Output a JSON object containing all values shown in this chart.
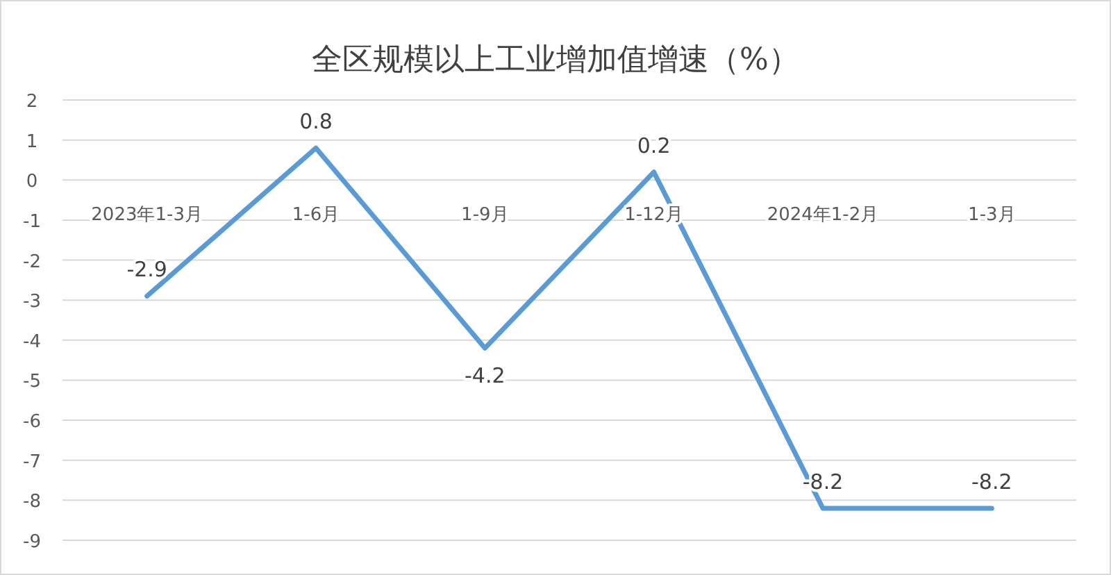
{
  "chart_data": {
    "type": "line",
    "title": "全区规模以上工业增加值增速（%）",
    "categories": [
      "2023年1-3月",
      "1-6月",
      "1-9月",
      "1-12月",
      "2024年1-2月",
      "1-3月"
    ],
    "values": [
      -2.9,
      0.8,
      -4.2,
      0.2,
      -8.2,
      -8.2
    ],
    "color": "#5b9bd5",
    "ylim": [
      -9,
      2
    ],
    "yticks": [
      -9,
      -8,
      -7,
      -6,
      -5,
      -4,
      -3,
      -2,
      -1,
      0,
      1,
      2
    ],
    "grid": "y",
    "data_labels": true
  }
}
